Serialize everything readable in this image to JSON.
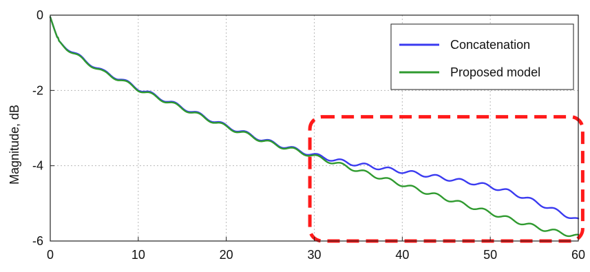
{
  "chart_data": {
    "type": "line",
    "title": "",
    "xlabel": "",
    "ylabel": "Magnitude, dB",
    "xlim": [
      0,
      60
    ],
    "ylim": [
      -6,
      0
    ],
    "xticks": [
      0,
      10,
      20,
      30,
      40,
      50,
      60
    ],
    "yticks": [
      0,
      -2,
      -4,
      -6
    ],
    "grid": true,
    "legend_position": "top-right",
    "series": [
      {
        "name": "Concatenation",
        "color": "#3a3af0",
        "x": [
          0,
          0.5,
          1,
          2,
          3,
          4,
          5,
          6,
          7,
          8,
          10,
          12,
          14,
          16,
          18,
          20,
          22,
          24,
          26,
          28,
          30,
          32,
          34,
          36,
          38,
          40,
          42,
          44,
          46,
          48,
          50,
          52,
          54,
          56,
          58,
          60
        ],
        "y": [
          -0.05,
          -0.4,
          -0.72,
          -0.88,
          -1.05,
          -1.22,
          -1.35,
          -1.5,
          -1.6,
          -1.7,
          -1.95,
          -2.15,
          -2.35,
          -2.55,
          -2.75,
          -2.95,
          -3.12,
          -3.3,
          -3.45,
          -3.58,
          -3.72,
          -3.83,
          -3.93,
          -4.0,
          -4.08,
          -4.15,
          -4.22,
          -4.3,
          -4.38,
          -4.45,
          -4.55,
          -4.68,
          -4.85,
          -5.05,
          -5.25,
          -5.45
        ],
        "ripple_amplitude": 0.05,
        "ripple_period": 2.7
      },
      {
        "name": "Proposed model",
        "color": "#2f9a2f",
        "x": [
          0,
          0.5,
          1,
          2,
          3,
          4,
          5,
          6,
          7,
          8,
          10,
          12,
          14,
          16,
          18,
          20,
          22,
          24,
          26,
          28,
          30,
          32,
          34,
          36,
          38,
          40,
          42,
          44,
          46,
          48,
          50,
          52,
          54,
          56,
          58,
          60
        ],
        "y": [
          -0.05,
          -0.4,
          -0.72,
          -0.9,
          -1.07,
          -1.24,
          -1.37,
          -1.52,
          -1.62,
          -1.72,
          -1.97,
          -2.17,
          -2.37,
          -2.57,
          -2.77,
          -2.97,
          -3.14,
          -3.32,
          -3.47,
          -3.6,
          -3.75,
          -3.9,
          -4.05,
          -4.2,
          -4.35,
          -4.5,
          -4.65,
          -4.8,
          -4.95,
          -5.1,
          -5.25,
          -5.4,
          -5.55,
          -5.68,
          -5.78,
          -5.88
        ],
        "ripple_amplitude": 0.05,
        "ripple_period": 2.7
      }
    ],
    "annotations": [
      {
        "type": "highlight-box",
        "style": "dashed",
        "color": "#ff1a1a",
        "x_range": [
          29.5,
          60.5
        ],
        "y_range": [
          -6,
          -2.7
        ]
      }
    ]
  }
}
